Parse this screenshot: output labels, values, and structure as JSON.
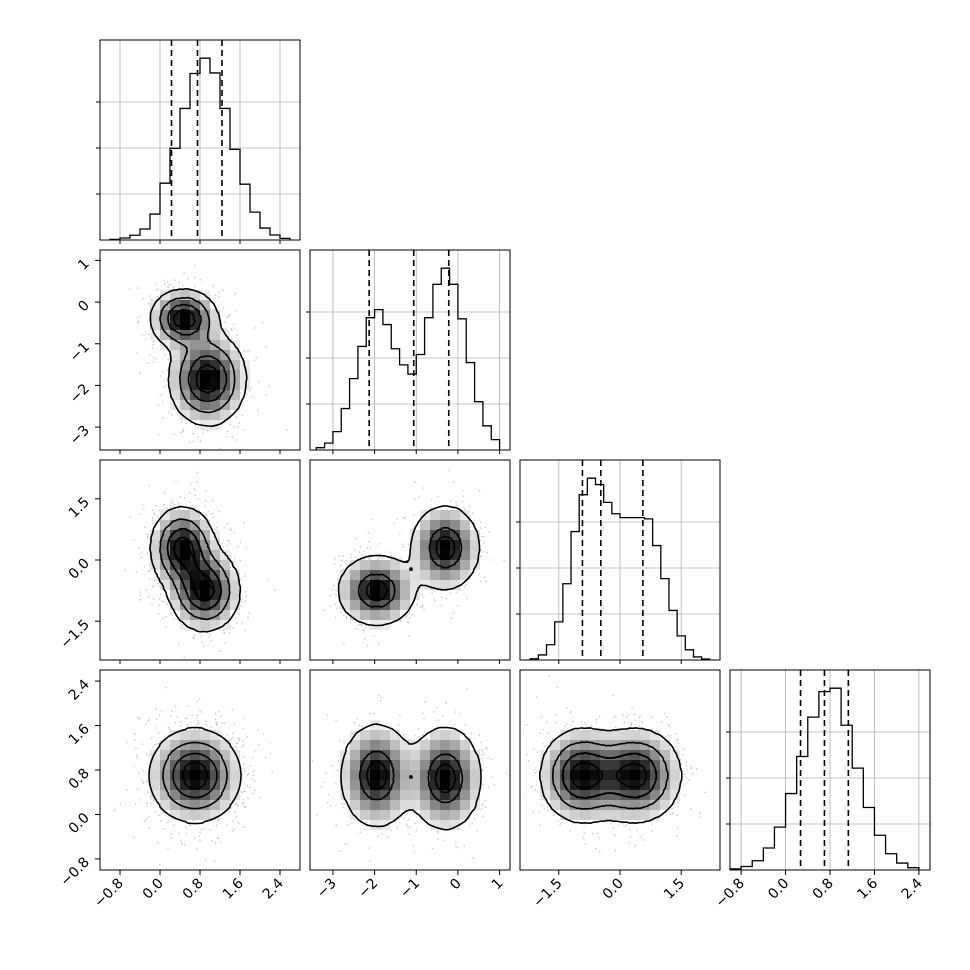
{
  "chart_data": {
    "type": "corner",
    "parameters": [
      {
        "ticks": [
          "−0.8",
          "0.0",
          "0.8",
          "1.6",
          "2.4"
        ],
        "tick_values": [
          -0.8,
          0.0,
          0.8,
          1.6,
          2.4
        ],
        "range": [
          -1.2,
          2.8
        ]
      },
      {
        "ticks": [
          "−3",
          "−2",
          "−1",
          "0",
          "1"
        ],
        "tick_values": [
          -3,
          -2,
          -1,
          0,
          1
        ],
        "range": [
          -3.55,
          1.25
        ]
      },
      {
        "ticks": [
          "−1.5",
          "0.0",
          "1.5"
        ],
        "tick_values": [
          -1.5,
          0.0,
          1.5
        ],
        "range": [
          -2.45,
          2.45
        ]
      },
      {
        "ticks": [
          "−0.8",
          "0.0",
          "0.8",
          "1.6",
          "2.4"
        ],
        "tick_values": [
          -0.8,
          0.0,
          0.8,
          1.6,
          2.4
        ],
        "range": [
          -1.0,
          2.6
        ]
      }
    ],
    "histograms": [
      {
        "param": 0,
        "bins": [
          -1.0,
          -0.8,
          -0.6,
          -0.4,
          -0.2,
          0.0,
          0.2,
          0.4,
          0.6,
          0.8,
          1.0,
          1.2,
          1.4,
          1.6,
          1.8,
          2.0,
          2.2,
          2.4,
          2.6
        ],
        "counts": [
          3,
          10,
          24,
          55,
          130,
          285,
          460,
          660,
          835,
          912,
          838,
          660,
          455,
          280,
          140,
          60,
          25,
          8
        ],
        "quantiles": [
          0.23,
          0.75,
          1.24
        ]
      },
      {
        "param": 1,
        "bins": [
          -3.4,
          -3.2,
          -3.0,
          -2.8,
          -2.6,
          -2.4,
          -2.2,
          -2.0,
          -1.8,
          -1.6,
          -1.4,
          -1.2,
          -1.0,
          -0.8,
          -0.6,
          -0.4,
          -0.2,
          0.0,
          0.2,
          0.4,
          0.6,
          0.8,
          1.0
        ],
        "counts": [
          10,
          30,
          80,
          180,
          310,
          450,
          575,
          610,
          545,
          440,
          370,
          330,
          415,
          575,
          720,
          790,
          720,
          570,
          380,
          210,
          105,
          45
        ],
        "quantiles": [
          -2.13,
          -1.06,
          -0.22
        ]
      },
      {
        "param": 2,
        "bins": [
          -2.2,
          -2.0,
          -1.8,
          -1.6,
          -1.4,
          -1.2,
          -1.0,
          -0.8,
          -0.6,
          -0.4,
          -0.2,
          0.0,
          0.2,
          0.4,
          0.6,
          0.8,
          1.0,
          1.2,
          1.4,
          1.6,
          1.8,
          2.0,
          2.2
        ],
        "counts": [
          5,
          20,
          60,
          150,
          300,
          505,
          650,
          715,
          690,
          620,
          575,
          560,
          560,
          560,
          555,
          450,
          320,
          195,
          95,
          40,
          12,
          4
        ],
        "quantiles": [
          -0.92,
          -0.47,
          0.56
        ]
      },
      {
        "param": 3,
        "bins": [
          -1.0,
          -0.8,
          -0.6,
          -0.4,
          -0.2,
          0.0,
          0.2,
          0.4,
          0.6,
          0.8,
          1.0,
          1.2,
          1.4,
          1.6,
          1.8,
          2.0,
          2.2,
          2.4
        ],
        "counts": [
          5,
          15,
          40,
          95,
          185,
          330,
          490,
          660,
          770,
          785,
          625,
          440,
          270,
          150,
          70,
          30,
          10
        ],
        "quantiles": [
          0.27,
          0.7,
          1.13
        ]
      }
    ],
    "scatter_2d": [
      {
        "row": 1,
        "col": 0,
        "modes": [
          [
            0.48,
            -0.4,
            0.33,
            0.35
          ],
          [
            0.95,
            -1.85,
            0.38,
            0.55
          ]
        ]
      },
      {
        "row": 2,
        "col": 0,
        "modes": [
          [
            0.45,
            0.3,
            0.32,
            0.5
          ],
          [
            0.9,
            -0.75,
            0.35,
            0.5
          ]
        ]
      },
      {
        "row": 2,
        "col": 1,
        "modes": [
          [
            -1.95,
            -0.75,
            0.45,
            0.42
          ],
          [
            -0.3,
            0.3,
            0.4,
            0.5
          ]
        ]
      },
      {
        "row": 3,
        "col": 0,
        "modes": [
          [
            0.7,
            0.7,
            0.45,
            0.42
          ]
        ]
      },
      {
        "row": 3,
        "col": 1,
        "modes": [
          [
            -1.95,
            0.7,
            0.42,
            0.45
          ],
          [
            -0.3,
            0.65,
            0.42,
            0.45
          ]
        ]
      },
      {
        "row": 3,
        "col": 2,
        "modes": [
          [
            -0.95,
            0.7,
            0.5,
            0.42
          ],
          [
            0.4,
            0.7,
            0.55,
            0.42
          ]
        ]
      }
    ]
  }
}
